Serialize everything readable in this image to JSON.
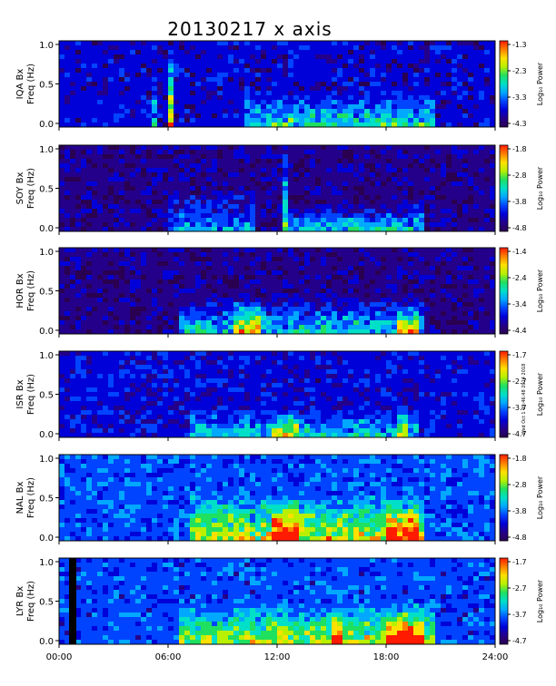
{
  "page_title": "20130217 x axis",
  "side_note": "Wed Oct 1 09:46:48 2014 2018",
  "colormap": [
    "#2a0050",
    "#24008a",
    "#0000d8",
    "#0044ff",
    "#00a8ff",
    "#00e0c8",
    "#20e060",
    "#b8f000",
    "#ffe000",
    "#ff8000",
    "#ff1a00"
  ],
  "chart_data": [
    {
      "type": "heatmap",
      "station_label": "IQA Bx",
      "ylabel": "Freq (Hz)",
      "ylim": [
        0.0,
        1.0
      ],
      "yticks": [
        "1.0",
        "0.5",
        "0.0"
      ],
      "colorbar_label": "Log₁₀ Power",
      "colorbar_ticks": [
        "-1.3",
        "-2.3",
        "-3.3",
        "-4.3"
      ],
      "zlim": [
        -4.3,
        -1.3
      ],
      "baseline_power": -3.75,
      "activity": [
        {
          "start_hr": 6.0,
          "end_hr": 6.3,
          "max_freq": 1.0,
          "level": 0.75
        },
        {
          "start_hr": 5.1,
          "end_hr": 5.3,
          "max_freq": 0.8,
          "level": 0.35
        },
        {
          "start_hr": 10.0,
          "end_hr": 20.5,
          "max_freq": 0.45,
          "level": 0.45
        }
      ]
    },
    {
      "type": "heatmap",
      "station_label": "SOY Bx",
      "ylabel": "Freq (Hz)",
      "ylim": [
        0.0,
        1.0
      ],
      "yticks": [
        "1.0",
        "0.5",
        "0.0"
      ],
      "colorbar_label": "Log₁₀ Power",
      "colorbar_ticks": [
        "-1.8",
        "-2.8",
        "-3.8",
        "-4.8"
      ],
      "zlim": [
        -4.8,
        -1.8
      ],
      "baseline_power": -4.45,
      "activity": [
        {
          "start_hr": 6.0,
          "end_hr": 10.5,
          "max_freq": 0.5,
          "level": 0.35
        },
        {
          "start_hr": 12.2,
          "end_hr": 12.4,
          "max_freq": 1.0,
          "level": 0.6
        },
        {
          "start_hr": 12.5,
          "end_hr": 20.0,
          "max_freq": 0.35,
          "level": 0.5
        }
      ]
    },
    {
      "type": "heatmap",
      "station_label": "HOR Bx",
      "ylabel": "Freq (Hz)",
      "ylim": [
        0.0,
        1.0
      ],
      "yticks": [
        "1.0",
        "0.5",
        "0.0"
      ],
      "colorbar_label": "Log₁₀ Power",
      "colorbar_ticks": [
        "-1.4",
        "-2.4",
        "-3.4",
        "-4.4"
      ],
      "zlim": [
        -4.4,
        -1.4
      ],
      "baseline_power": -4.05,
      "activity": [
        {
          "start_hr": 6.5,
          "end_hr": 20.0,
          "max_freq": 0.5,
          "level": 0.45
        },
        {
          "start_hr": 9.5,
          "end_hr": 11.0,
          "max_freq": 0.45,
          "level": 0.5
        },
        {
          "start_hr": 18.5,
          "end_hr": 19.5,
          "max_freq": 0.4,
          "level": 0.5
        }
      ]
    },
    {
      "type": "heatmap",
      "station_label": "ISR Bx",
      "ylabel": "Freq (Hz)",
      "ylim": [
        0.0,
        1.0
      ],
      "yticks": [
        "1.0",
        "0.5",
        "0.0"
      ],
      "colorbar_label": "Log₁₀ Power",
      "colorbar_ticks": [
        "-1.7",
        "-2.7",
        "-3.7",
        "-4.7"
      ],
      "zlim": [
        -4.7,
        -1.7
      ],
      "baseline_power": -4.1,
      "activity": [
        {
          "start_hr": 7.0,
          "end_hr": 19.5,
          "max_freq": 0.35,
          "level": 0.35
        },
        {
          "start_hr": 11.5,
          "end_hr": 13.0,
          "max_freq": 0.4,
          "level": 0.45
        },
        {
          "start_hr": 18.5,
          "end_hr": 19.2,
          "max_freq": 0.45,
          "level": 0.4
        }
      ]
    },
    {
      "type": "heatmap",
      "station_label": "NAL Bx",
      "ylabel": "Freq (Hz)",
      "ylim": [
        0.0,
        1.0
      ],
      "yticks": [
        "1.0",
        "0.5",
        "0.0"
      ],
      "colorbar_label": "Log₁₀ Power",
      "colorbar_ticks": [
        "-1.8",
        "-2.8",
        "-3.8",
        "-4.8"
      ],
      "zlim": [
        -4.8,
        -1.8
      ],
      "baseline_power": -3.85,
      "activity": [
        {
          "start_hr": 7.0,
          "end_hr": 20.0,
          "max_freq": 0.6,
          "level": 0.5
        },
        {
          "start_hr": 11.5,
          "end_hr": 13.0,
          "max_freq": 0.5,
          "level": 0.6
        },
        {
          "start_hr": 18.0,
          "end_hr": 19.5,
          "max_freq": 0.45,
          "level": 0.55
        }
      ]
    },
    {
      "type": "heatmap",
      "station_label": "LYR Bx",
      "ylabel": "Freq (Hz)",
      "ylim": [
        0.0,
        1.0
      ],
      "yticks": [
        "1.0",
        "0.5",
        "0.0"
      ],
      "colorbar_label": "Log₁₀ Power",
      "colorbar_ticks": [
        "-1.7",
        "-2.7",
        "-3.7",
        "-4.7"
      ],
      "zlim": [
        -4.7,
        -1.7
      ],
      "baseline_power": -3.85,
      "gap": {
        "start_hr": 0.55,
        "end_hr": 0.95
      },
      "activity": [
        {
          "start_hr": 6.5,
          "end_hr": 20.5,
          "max_freq": 0.55,
          "level": 0.5
        },
        {
          "start_hr": 15.0,
          "end_hr": 15.5,
          "max_freq": 0.5,
          "level": 0.55
        },
        {
          "start_hr": 18.0,
          "end_hr": 19.8,
          "max_freq": 0.5,
          "level": 0.55
        }
      ]
    }
  ],
  "x_axis": {
    "xlim": [
      0,
      24
    ],
    "ticks": [
      {
        "hour": 0,
        "label": "00:00"
      },
      {
        "hour": 6,
        "label": "06:00"
      },
      {
        "hour": 12,
        "label": "12:00"
      },
      {
        "hour": 18,
        "label": "18:00"
      },
      {
        "hour": 24,
        "label": "24:00"
      }
    ]
  }
}
